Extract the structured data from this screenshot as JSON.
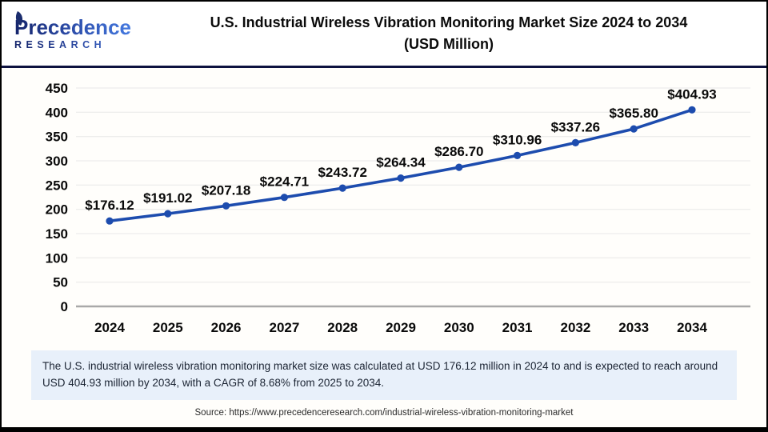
{
  "header": {
    "logo": {
      "word": "Precedence",
      "subtitle": "RESEARCH"
    },
    "title_line1": "U.S. Industrial Wireless Vibration Monitoring Market Size 2024 to 2034",
    "title_line2": "(USD Million)"
  },
  "chart_data": {
    "type": "line",
    "title": "U.S. Industrial Wireless Vibration Monitoring Market Size 2024 to 2034 (USD Million)",
    "categories": [
      "2024",
      "2025",
      "2026",
      "2027",
      "2028",
      "2029",
      "2030",
      "2031",
      "2032",
      "2033",
      "2034"
    ],
    "values": [
      176.12,
      191.02,
      207.18,
      224.71,
      243.72,
      264.34,
      286.7,
      310.96,
      337.26,
      365.8,
      404.93
    ],
    "point_labels": [
      "$176.12",
      "$191.02",
      "$207.18",
      "$224.71",
      "$243.72",
      "$264.34",
      "$286.70",
      "$310.96",
      "$337.26",
      "$365.80",
      "$404.93"
    ],
    "xlabel": "",
    "ylabel": "",
    "ylim": [
      0,
      450
    ],
    "ytick_step": 50,
    "grid": true,
    "legend_position": "none",
    "line_color": "#1d4cae",
    "marker": "circle"
  },
  "summary": {
    "text": "The U.S. industrial wireless vibration monitoring market size was calculated at USD 176.12 million in 2024 to and is expected to reach around USD 404.93 million by 2034, with a CAGR of 8.68% from 2025 to 2034."
  },
  "source": {
    "text": "Source: https://www.precedenceresearch.com/industrial-wireless-vibration-monitoring-market"
  },
  "colors": {
    "accent_blue": "#1d4cae",
    "header_divider": "#0d1240",
    "summary_bg": "#e8f0fa",
    "grid_line": "#e8e8e8",
    "axis_line": "#a9a9a9",
    "logo_navy": "#14246b",
    "logo_blue": "#4479e0"
  }
}
